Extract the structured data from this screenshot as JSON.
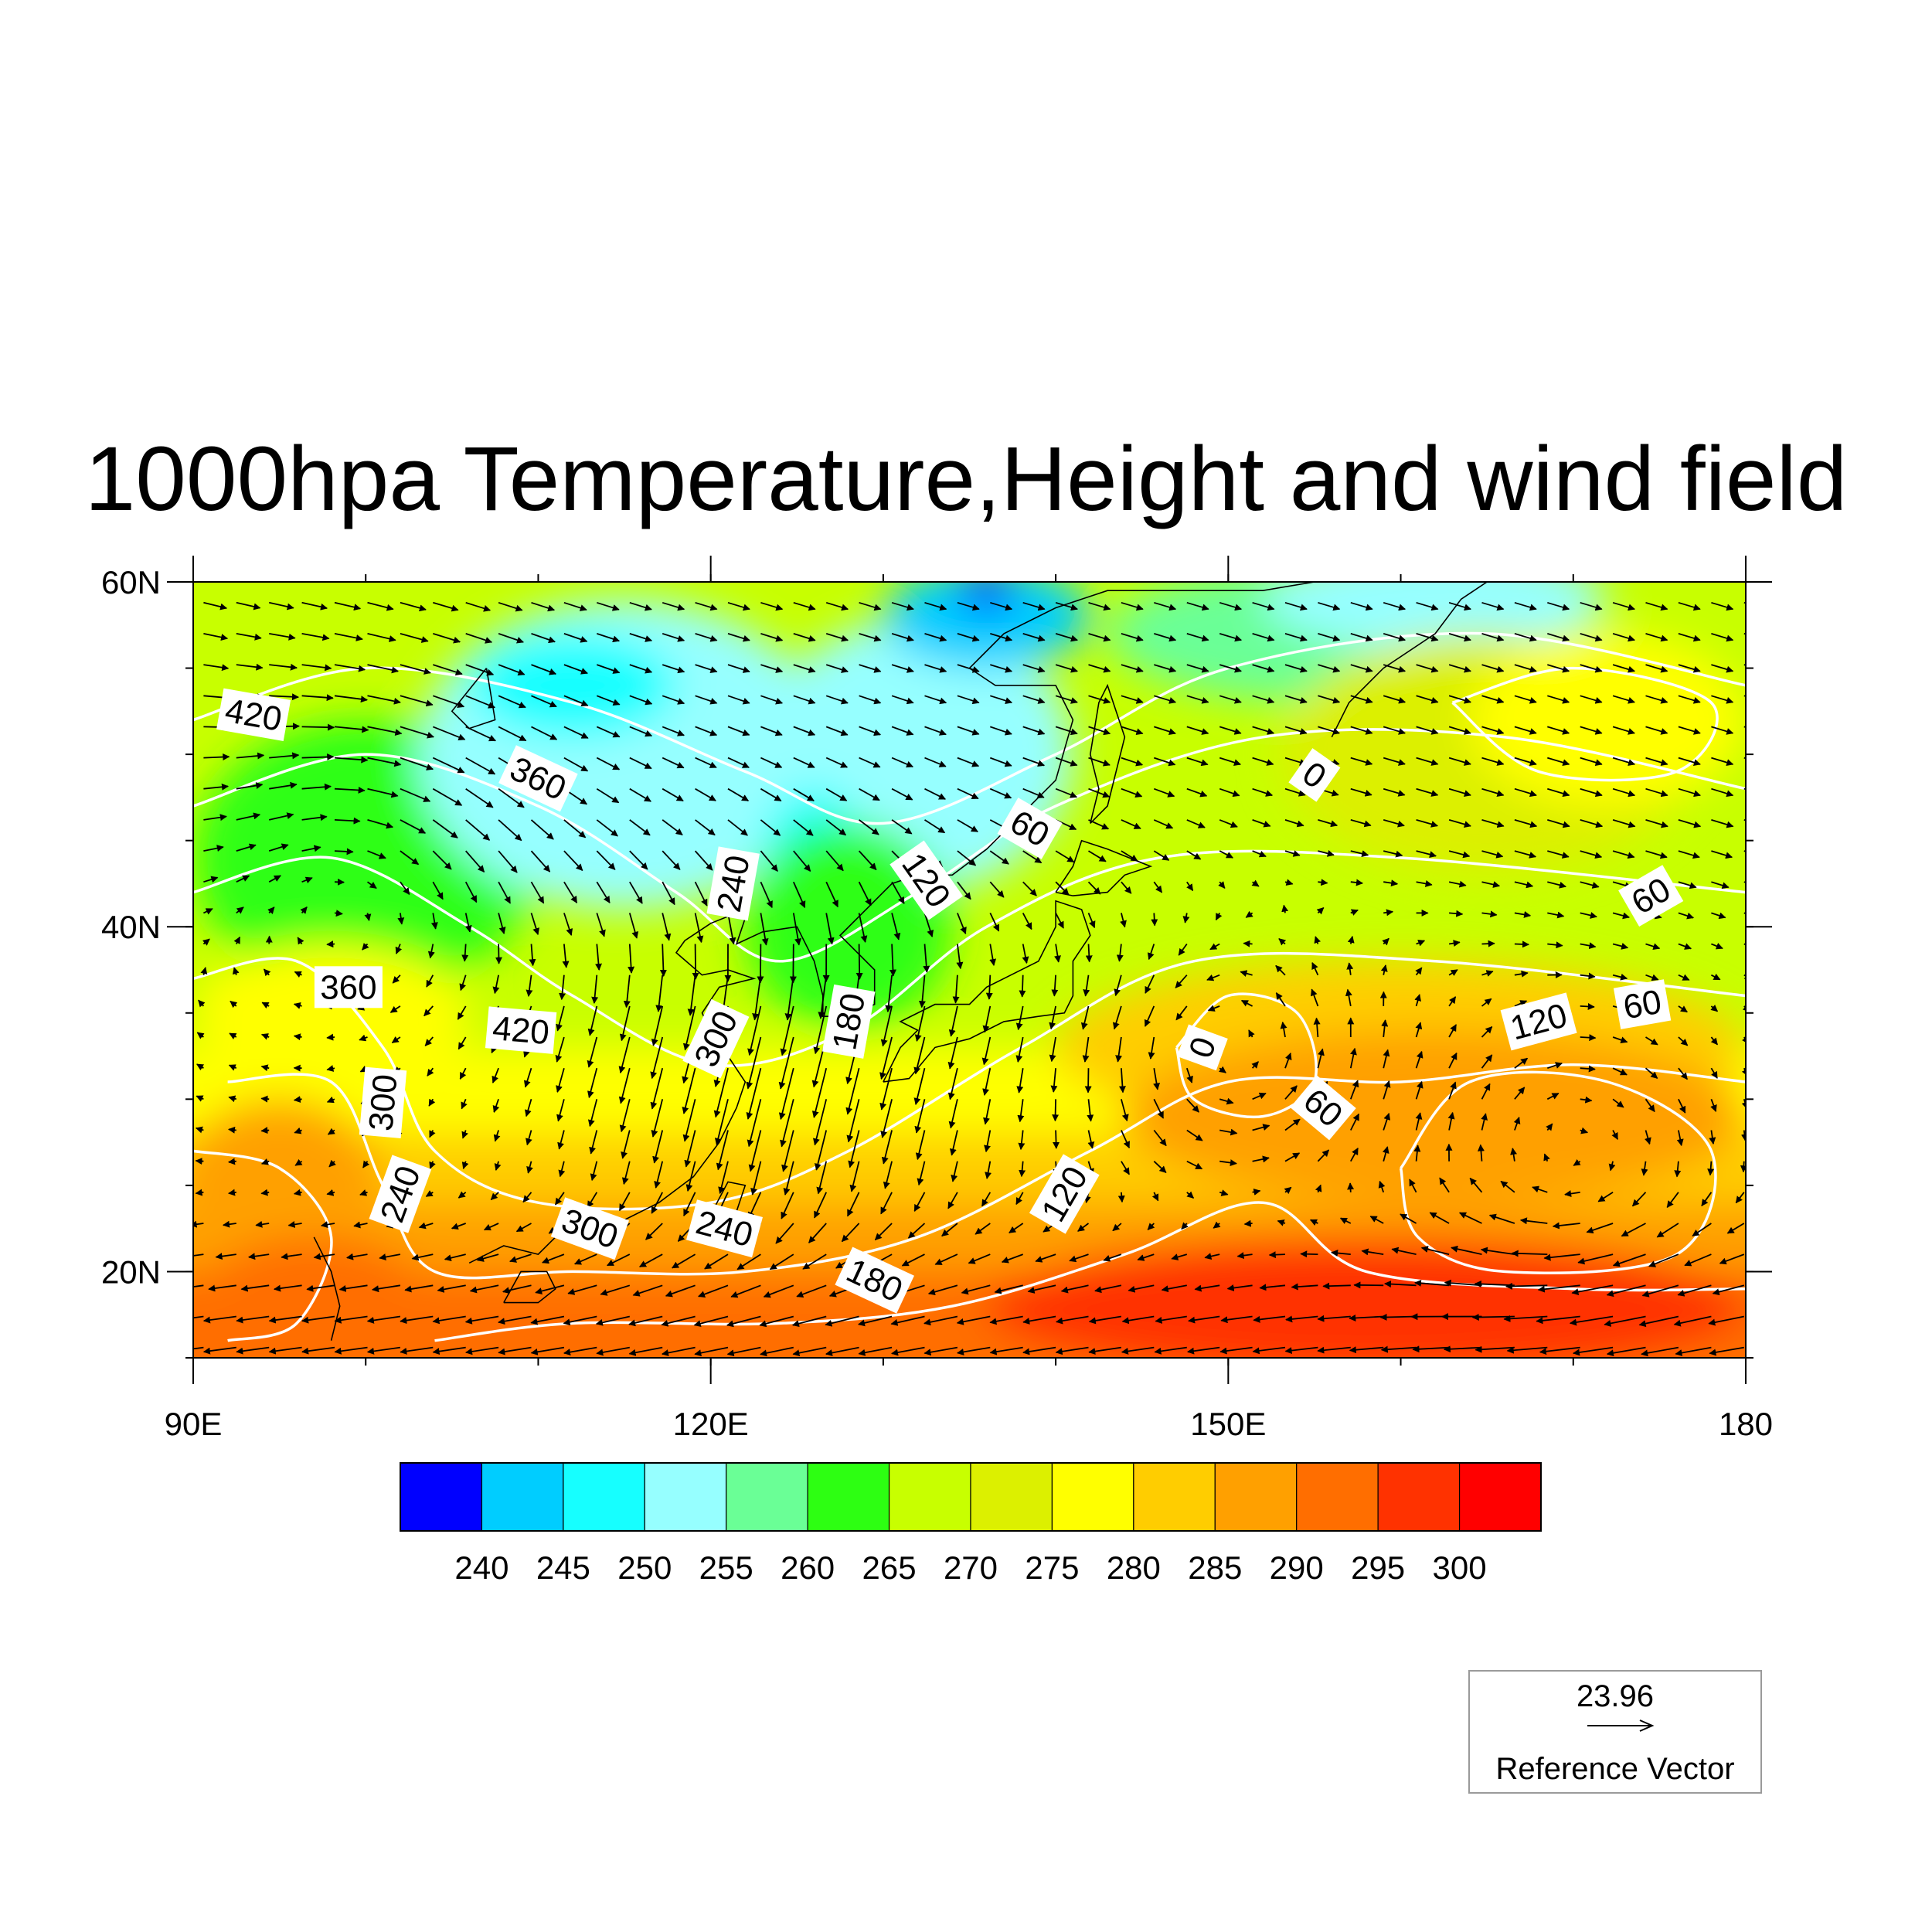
{
  "title": "1000hpa Temperature,Height and wind field",
  "map": {
    "lon_range": [
      90,
      180
    ],
    "lat_range": [
      15,
      60
    ],
    "lon_ticks": [
      {
        "value": 90,
        "label": "90E"
      },
      {
        "value": 120,
        "label": "120E"
      },
      {
        "value": 150,
        "label": "150E"
      },
      {
        "value": 180,
        "label": "180"
      }
    ],
    "lat_ticks": [
      {
        "value": 20,
        "label": "20N"
      },
      {
        "value": 40,
        "label": "40N"
      },
      {
        "value": 60,
        "label": "60N"
      }
    ],
    "temperature_field": {
      "variable": "Temperature",
      "units_shown": "",
      "regions": [
        {
          "level": 265,
          "lon": 100,
          "lat": 44,
          "r_lon": 10,
          "r_lat": 8
        },
        {
          "level": 255,
          "lon": 115,
          "lat": 50,
          "r_lon": 12,
          "r_lat": 9
        },
        {
          "level": 250,
          "lon": 112,
          "lat": 54,
          "r_lon": 6,
          "r_lat": 3
        },
        {
          "level": 255,
          "lon": 132,
          "lat": 50,
          "r_lon": 9,
          "r_lat": 8
        },
        {
          "level": 250,
          "lon": 126,
          "lat": 44,
          "r_lon": 3,
          "r_lat": 4
        },
        {
          "level": 245,
          "lon": 136,
          "lat": 58,
          "r_lon": 6,
          "r_lat": 3
        },
        {
          "level": 240,
          "lon": 136,
          "lat": 59.5,
          "r_lon": 1.5,
          "r_lat": 1.2
        },
        {
          "level": 265,
          "lon": 128,
          "lat": 40,
          "r_lon": 6,
          "r_lat": 6
        },
        {
          "level": 260,
          "lon": 155,
          "lat": 57,
          "r_lon": 12,
          "r_lat": 4
        },
        {
          "level": 255,
          "lon": 162,
          "lat": 59,
          "r_lon": 10,
          "r_lat": 3
        },
        {
          "level": 275,
          "lon": 165,
          "lat": 50,
          "r_lon": 12,
          "r_lat": 7
        },
        {
          "level": 280,
          "lon": 172,
          "lat": 52,
          "r_lon": 8,
          "r_lat": 5
        },
        {
          "level": 280,
          "lon": 98,
          "lat": 35,
          "r_lon": 8,
          "r_lat": 4
        },
        {
          "level": 290,
          "lon": 95,
          "lat": 25,
          "r_lon": 6,
          "r_lat": 5
        },
        {
          "level": 295,
          "lon": 97,
          "lat": 18,
          "r_lon": 7,
          "r_lat": 4
        },
        {
          "level": 285,
          "lon": 160,
          "lat": 33,
          "r_lon": 20,
          "r_lat": 5
        },
        {
          "level": 290,
          "lon": 162,
          "lat": 29,
          "r_lon": 18,
          "r_lat": 5
        },
        {
          "level": 300,
          "lon": 158,
          "lat": 18,
          "r_lon": 22,
          "r_lat": 4
        }
      ],
      "bands": [
        {
          "level": 280,
          "lat_min": 15,
          "lat_max": 33
        },
        {
          "level": 285,
          "lat_min": 15,
          "lat_max": 28
        },
        {
          "level": 290,
          "lat_min": 15,
          "lat_max": 24
        },
        {
          "level": 295,
          "lat_min": 15,
          "lat_max": 20
        }
      ]
    },
    "height_contours": {
      "variable": "Height",
      "labels": [
        {
          "text": "420",
          "lon": 93.5,
          "lat": 52.3,
          "angle": -10
        },
        {
          "text": "360",
          "lon": 110,
          "lat": 48.6,
          "angle": -25
        },
        {
          "text": "360",
          "lon": 99,
          "lat": 36.5,
          "angle": 0
        },
        {
          "text": "420",
          "lon": 109,
          "lat": 34,
          "angle": -5
        },
        {
          "text": "300",
          "lon": 101,
          "lat": 29.8,
          "angle": 85
        },
        {
          "text": "240",
          "lon": 102,
          "lat": 24.5,
          "angle": 70
        },
        {
          "text": "300",
          "lon": 113,
          "lat": 22.5,
          "angle": -20
        },
        {
          "text": "240",
          "lon": 120.8,
          "lat": 22.5,
          "angle": -15
        },
        {
          "text": "240",
          "lon": 121.3,
          "lat": 42.5,
          "angle": 80
        },
        {
          "text": "300",
          "lon": 120.3,
          "lat": 33.5,
          "angle": 65
        },
        {
          "text": "180",
          "lon": 128,
          "lat": 34.5,
          "angle": 80
        },
        {
          "text": "120",
          "lon": 132.5,
          "lat": 42.7,
          "angle": -55
        },
        {
          "text": "60",
          "lon": 138.5,
          "lat": 45.7,
          "angle": -30
        },
        {
          "text": "0",
          "lon": 155,
          "lat": 48.8,
          "angle": -35
        },
        {
          "text": "180",
          "lon": 129.5,
          "lat": 19.5,
          "angle": -25
        },
        {
          "text": "120",
          "lon": 140.5,
          "lat": 24.5,
          "angle": 60
        },
        {
          "text": "0",
          "lon": 148.5,
          "lat": 33,
          "angle": 70
        },
        {
          "text": "60",
          "lon": 155.5,
          "lat": 29.5,
          "angle": -40
        },
        {
          "text": "120",
          "lon": 168,
          "lat": 34.5,
          "angle": 15
        },
        {
          "text": "60",
          "lon": 174.5,
          "lat": 41.8,
          "angle": 30
        },
        {
          "text": "60",
          "lon": 174,
          "lat": 35.5,
          "angle": 10
        }
      ]
    },
    "wind_vectors": {
      "spacing_lon": 1.9,
      "spacing_lat": 1.8
    }
  },
  "colorbar": {
    "colors": [
      "#0000ff",
      "#00cdff",
      "#16ffff",
      "#96ffff",
      "#6aff96",
      "#2dff12",
      "#c8ff00",
      "#dcf000",
      "#ffff00",
      "#ffcd00",
      "#ffa000",
      "#ff6e00",
      "#ff3200",
      "#ff0000"
    ],
    "labels": [
      "240",
      "245",
      "250",
      "255",
      "260",
      "265",
      "270",
      "275",
      "280",
      "285",
      "290",
      "295",
      "300"
    ]
  },
  "reference_vector": {
    "value": "23.96",
    "label": "Reference Vector"
  }
}
